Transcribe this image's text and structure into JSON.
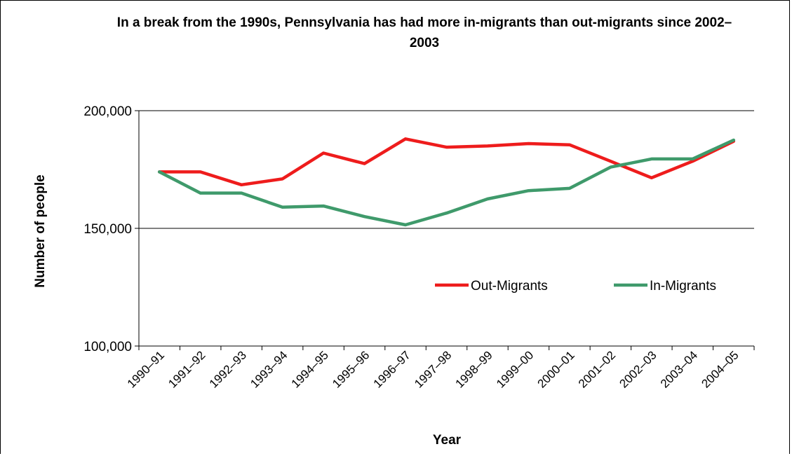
{
  "chart_data": {
    "type": "line",
    "title": "In a break from the 1990s, Pennsylvania has had more in-migrants than out-migrants since 2002–2003",
    "xlabel": "Year",
    "ylabel": "Number of people",
    "categories": [
      "1990–91",
      "1991–92",
      "1992–93",
      "1993–94",
      "1994–95",
      "1995–96",
      "1996–97",
      "1997–98",
      "1998–99",
      "1999–00",
      "2000–01",
      "2001–02",
      "2002–03",
      "2003–04",
      "2004–05"
    ],
    "ylim": [
      100000,
      200000
    ],
    "yticks": [
      100000,
      150000,
      200000
    ],
    "ytick_labels": [
      "100,000",
      "150,000",
      "200,000"
    ],
    "grid": true,
    "legend_position": "middle-right",
    "series": [
      {
        "name": "Out-Migrants",
        "color": "#ee1c1c",
        "values": [
          174000,
          174000,
          168500,
          171000,
          182000,
          177500,
          188000,
          184500,
          185000,
          186000,
          185500,
          178500,
          171500,
          178500,
          187000
        ]
      },
      {
        "name": "In-Migrants",
        "color": "#3f9a6b",
        "values": [
          174000,
          165000,
          165000,
          159000,
          159500,
          155000,
          151500,
          156500,
          162500,
          166000,
          167000,
          176000,
          179500,
          179500,
          187500
        ]
      }
    ]
  }
}
